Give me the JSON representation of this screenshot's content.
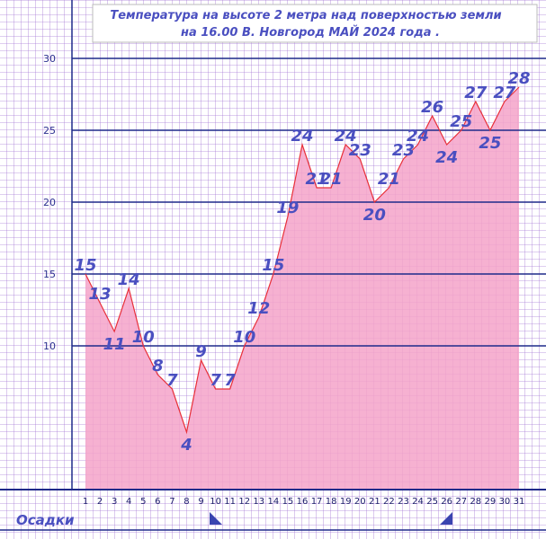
{
  "chart_data": {
    "type": "area",
    "title": "Температура  на  высоте  2 метра  над  поверхностью  земли",
    "subtitle": "на  16.00  В. Новгород  МАЙ  2024  года .",
    "precipitation_label": "Осадки",
    "categories": [
      "1",
      "2",
      "3",
      "4",
      "5",
      "6",
      "7",
      "8",
      "9",
      "10",
      "11",
      "12",
      "13",
      "14",
      "15",
      "16",
      "17",
      "18",
      "19",
      "20",
      "21",
      "22",
      "23",
      "24",
      "25",
      "26",
      "27",
      "28",
      "29",
      "30",
      "31"
    ],
    "values": [
      15,
      13,
      11,
      14,
      10,
      8,
      7,
      4,
      9,
      7,
      7,
      10,
      12,
      15,
      19,
      24,
      21,
      21,
      24,
      23,
      20,
      21,
      23,
      24,
      26,
      24,
      25,
      27,
      25,
      27,
      28
    ],
    "color": "#f4a3c9",
    "line_color": "#e8303a",
    "ylim": [
      0,
      34
    ],
    "yticks": [
      10,
      15,
      20,
      25,
      30
    ],
    "grid": true
  }
}
